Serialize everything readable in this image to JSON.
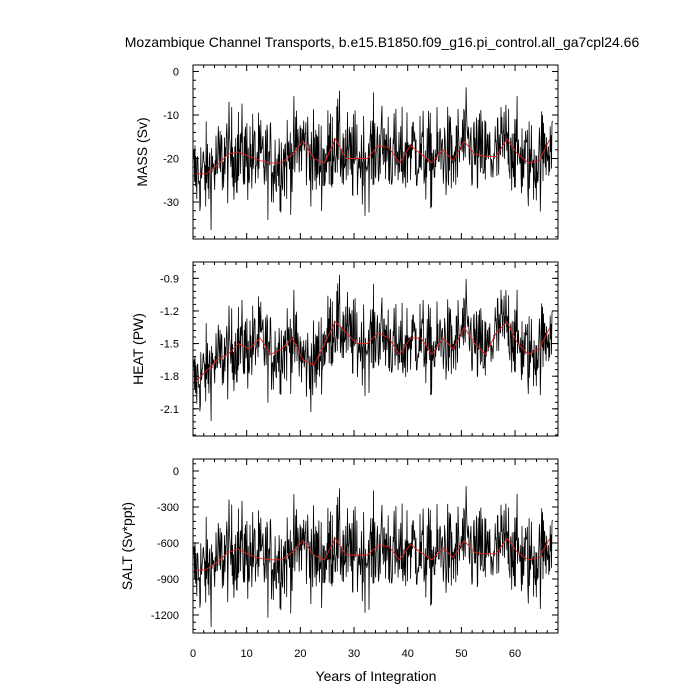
{
  "figure": {
    "title": "Mozambique Channel Transports, b.e15.B1850.f09_g16.pi_control.all_ga7cpl24.66",
    "xlabel": "Years of Integration",
    "colors": {
      "raw": "#000000",
      "smoothed": "#e8201c"
    }
  },
  "chart_data": [
    {
      "type": "line",
      "ylabel": "MASS (Sv)",
      "xlim": [
        0,
        68
      ],
      "ylim": [
        -38.5,
        1.5
      ],
      "x_ticks": [
        0,
        10,
        20,
        30,
        40,
        50,
        60
      ],
      "y_ticks": [
        0,
        -10,
        -20,
        -30
      ],
      "series": [
        {
          "x": [
            0.5,
            2.5,
            4.5,
            6.5,
            8.5,
            10.5,
            12.5,
            14.5,
            16.5,
            18.5,
            20.5,
            22.5,
            24.5,
            26.5,
            28.5,
            30.5,
            32.5,
            34.5,
            36.5,
            38.5,
            40.5,
            42.5,
            44.5,
            46.5,
            48.5,
            50.5,
            52.5,
            54.5,
            56.5,
            58.5,
            60.5,
            62.5,
            64.5,
            66.5
          ],
          "values": [
            -23.5,
            -23.5,
            -21.5,
            -19,
            -18.5,
            -19.5,
            -20.5,
            -21,
            -21,
            -19,
            -16,
            -20,
            -21,
            -15.5,
            -20,
            -20,
            -20,
            -17,
            -17.5,
            -21,
            -17,
            -19,
            -21,
            -18,
            -20.5,
            -16,
            -19,
            -19.5,
            -19.5,
            -15.5,
            -19,
            -21,
            -20.5,
            -15.5
          ]
        }
      ]
    },
    {
      "type": "line",
      "ylabel": "HEAT (PW)",
      "xlim": [
        0,
        68
      ],
      "ylim": [
        -2.35,
        -0.75
      ],
      "x_ticks": [
        0,
        10,
        20,
        30,
        40,
        50,
        60
      ],
      "y_ticks": [
        -0.9,
        -1.2,
        -1.5,
        -1.8,
        -2.1
      ],
      "series": [
        {
          "x": [
            0.5,
            2.5,
            4.5,
            6.5,
            8.5,
            10.5,
            12.5,
            14.5,
            16.5,
            18.5,
            20.5,
            22.5,
            24.5,
            26.5,
            28.5,
            30.5,
            32.5,
            34.5,
            36.5,
            38.5,
            40.5,
            42.5,
            44.5,
            46.5,
            48.5,
            50.5,
            52.5,
            54.5,
            56.5,
            58.5,
            60.5,
            62.5,
            64.5,
            66.5
          ],
          "values": [
            -1.85,
            -1.75,
            -1.65,
            -1.6,
            -1.5,
            -1.55,
            -1.45,
            -1.6,
            -1.55,
            -1.45,
            -1.65,
            -1.7,
            -1.5,
            -1.3,
            -1.4,
            -1.5,
            -1.5,
            -1.4,
            -1.45,
            -1.6,
            -1.45,
            -1.45,
            -1.6,
            -1.45,
            -1.55,
            -1.35,
            -1.5,
            -1.6,
            -1.4,
            -1.3,
            -1.5,
            -1.6,
            -1.55,
            -1.35
          ]
        }
      ]
    },
    {
      "type": "line",
      "ylabel": "SALT (Sv*ppt)",
      "xlim": [
        0,
        68
      ],
      "ylim": [
        -1350,
        100
      ],
      "x_ticks": [
        0,
        10,
        20,
        30,
        40,
        50,
        60
      ],
      "y_ticks": [
        0,
        -300,
        -600,
        -900,
        -1200
      ],
      "series": [
        {
          "x": [
            0.5,
            2.5,
            4.5,
            6.5,
            8.5,
            10.5,
            12.5,
            14.5,
            16.5,
            18.5,
            20.5,
            22.5,
            24.5,
            26.5,
            28.5,
            30.5,
            32.5,
            34.5,
            36.5,
            38.5,
            40.5,
            42.5,
            44.5,
            46.5,
            48.5,
            50.5,
            52.5,
            54.5,
            56.5,
            58.5,
            60.5,
            62.5,
            64.5,
            66.5
          ],
          "values": [
            -830,
            -820,
            -760,
            -680,
            -650,
            -700,
            -730,
            -740,
            -740,
            -680,
            -580,
            -700,
            -740,
            -560,
            -700,
            -700,
            -700,
            -620,
            -630,
            -740,
            -610,
            -680,
            -740,
            -640,
            -720,
            -580,
            -680,
            -690,
            -690,
            -560,
            -680,
            -740,
            -720,
            -560
          ]
        }
      ]
    }
  ]
}
